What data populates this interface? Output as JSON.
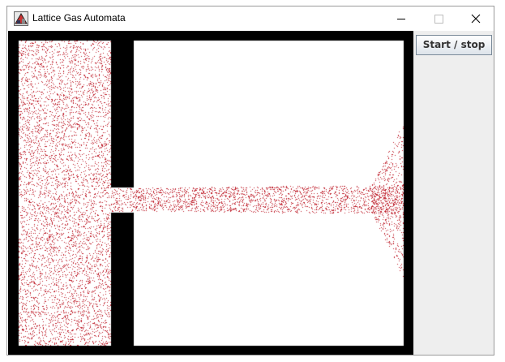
{
  "window": {
    "title": "Lattice Gas Automata"
  },
  "icons": {
    "app": "lattice-gas-app-icon",
    "minimize": "minimize-icon",
    "maximize": "maximize-icon",
    "close": "close-icon"
  },
  "controls": {
    "start_stop_label": "Start / stop"
  },
  "colors": {
    "wall": "#000000",
    "empty": "#ffffff",
    "particle": "#c0202c",
    "panel": "#eeeeee"
  }
}
